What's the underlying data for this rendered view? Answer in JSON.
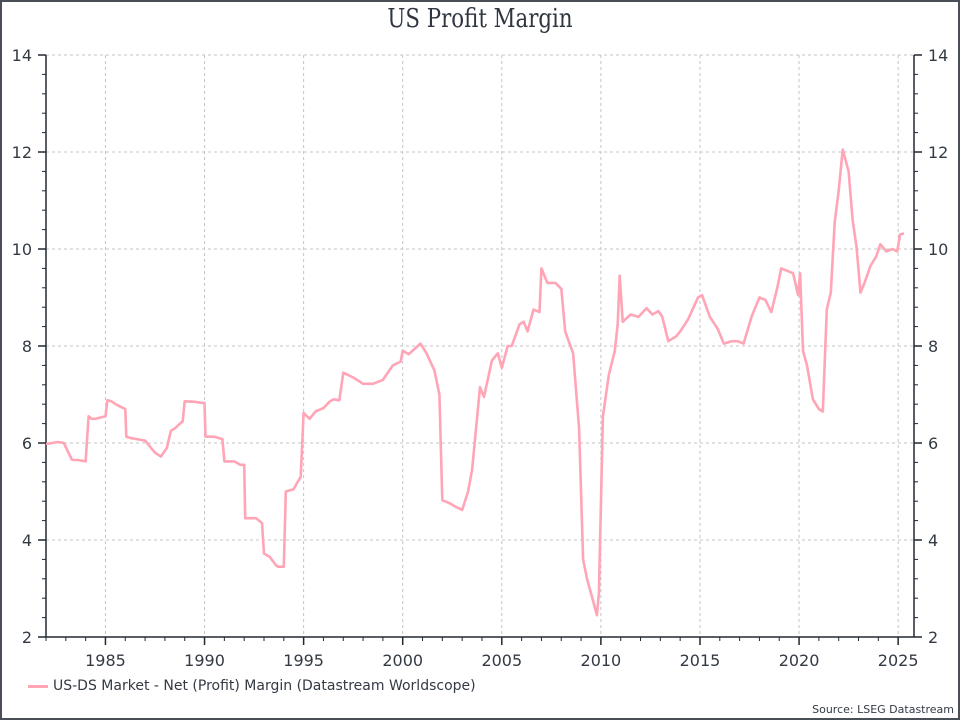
{
  "chart_data": {
    "type": "line",
    "title": "US Profit Margin",
    "xlabel": "",
    "ylabel": "",
    "xlim": [
      1982.0,
      2025.8
    ],
    "ylim": [
      2,
      14
    ],
    "x_ticks": [
      1985,
      1990,
      1995,
      2000,
      2005,
      2010,
      2015,
      2020,
      2025
    ],
    "y_ticks": [
      2,
      4,
      6,
      8,
      10,
      12,
      14
    ],
    "y_ticks_right": [
      2,
      4,
      6,
      8,
      10,
      12,
      14
    ],
    "grid": true,
    "legend_position": "bottom-left",
    "series": [
      {
        "name": "US-DS Market - Net (Profit) Margin (Datastream Worldscope)",
        "color": "#ffa5b6",
        "x": [
          1982.0,
          1982.6,
          1982.9,
          1983.3,
          1983.4,
          1983.6,
          1984.0,
          1984.15,
          1984.3,
          1984.5,
          1985.0,
          1985.1,
          1985.3,
          1985.6,
          1986.0,
          1986.05,
          1986.3,
          1987.0,
          1987.3,
          1987.5,
          1987.8,
          1988.1,
          1988.3,
          1988.5,
          1988.9,
          1989.0,
          1989.5,
          1990.0,
          1990.05,
          1990.5,
          1990.9,
          1991.0,
          1991.5,
          1991.8,
          1992.0,
          1992.05,
          1992.6,
          1992.9,
          1993.0,
          1993.3,
          1993.6,
          1993.7,
          1994.0,
          1994.1,
          1994.5,
          1994.7,
          1994.85,
          1995.0,
          1995.3,
          1995.6,
          1996.0,
          1996.3,
          1996.5,
          1996.8,
          1997.0,
          1997.5,
          1998.0,
          1998.5,
          1999.0,
          1999.5,
          1999.9,
          2000.0,
          2000.3,
          2000.9,
          2001.2,
          2001.6,
          2001.85,
          2002.0,
          2002.4,
          2002.6,
          2003.0,
          2003.3,
          2003.5,
          2003.9,
          2004.1,
          2004.5,
          2004.8,
          2005.0,
          2005.3,
          2005.5,
          2005.9,
          2006.1,
          2006.3,
          2006.6,
          2006.9,
          2007.0,
          2007.3,
          2007.7,
          2008.0,
          2008.2,
          2008.6,
          2008.9,
          2009.1,
          2009.3,
          2009.6,
          2009.8,
          2009.9,
          2010.1,
          2010.4,
          2010.7,
          2010.85,
          2010.95,
          2011.1,
          2011.5,
          2011.9,
          2012.3,
          2012.6,
          2012.9,
          2013.1,
          2013.4,
          2013.8,
          2014.0,
          2014.4,
          2014.9,
          2015.1,
          2015.5,
          2015.9,
          2016.2,
          2016.6,
          2016.9,
          2017.2,
          2017.6,
          2018.0,
          2018.3,
          2018.6,
          2018.9,
          2019.1,
          2019.4,
          2019.7,
          2019.95,
          2020.05,
          2020.2,
          2020.4,
          2020.7,
          2021.0,
          2021.2,
          2021.4,
          2021.6,
          2021.8,
          2022.0,
          2022.2,
          2022.5,
          2022.7,
          2022.9,
          2023.1,
          2023.3,
          2023.6,
          2023.9,
          2024.1,
          2024.4,
          2024.7,
          2024.95,
          2025.1,
          2025.3
        ],
        "y": [
          5.98,
          6.02,
          6.0,
          5.66,
          5.65,
          5.65,
          5.62,
          6.55,
          6.5,
          6.5,
          6.55,
          6.88,
          6.86,
          6.78,
          6.7,
          6.13,
          6.1,
          6.05,
          5.9,
          5.8,
          5.72,
          5.9,
          6.25,
          6.3,
          6.45,
          6.86,
          6.85,
          6.82,
          6.13,
          6.13,
          6.08,
          5.62,
          5.62,
          5.55,
          5.55,
          4.45,
          4.45,
          4.35,
          3.72,
          3.65,
          3.48,
          3.45,
          3.45,
          5.0,
          5.05,
          5.2,
          5.3,
          6.62,
          6.5,
          6.65,
          6.72,
          6.85,
          6.9,
          6.88,
          7.45,
          7.35,
          7.22,
          7.22,
          7.3,
          7.6,
          7.68,
          7.9,
          7.83,
          8.05,
          7.85,
          7.5,
          7.0,
          4.82,
          4.75,
          4.7,
          4.62,
          5.0,
          5.45,
          7.15,
          6.95,
          7.7,
          7.85,
          7.55,
          8.0,
          8.0,
          8.45,
          8.5,
          8.3,
          8.75,
          8.7,
          9.6,
          9.3,
          9.3,
          9.18,
          8.3,
          7.85,
          6.3,
          3.6,
          3.2,
          2.75,
          2.45,
          2.9,
          6.55,
          7.4,
          7.9,
          8.45,
          9.45,
          8.5,
          8.65,
          8.6,
          8.78,
          8.65,
          8.72,
          8.6,
          8.1,
          8.2,
          8.3,
          8.55,
          9.0,
          9.05,
          8.6,
          8.35,
          8.05,
          8.1,
          8.1,
          8.05,
          8.6,
          9.0,
          8.95,
          8.7,
          9.2,
          9.6,
          9.55,
          9.5,
          9.05,
          9.5,
          7.9,
          7.6,
          6.9,
          6.7,
          6.65,
          8.75,
          9.1,
          10.55,
          11.2,
          12.05,
          11.6,
          10.6,
          10.05,
          9.1,
          9.3,
          9.65,
          9.85,
          10.1,
          9.95,
          10.0,
          9.95,
          10.3,
          10.32
        ]
      }
    ],
    "source": "Source: LSEG Datastream"
  }
}
